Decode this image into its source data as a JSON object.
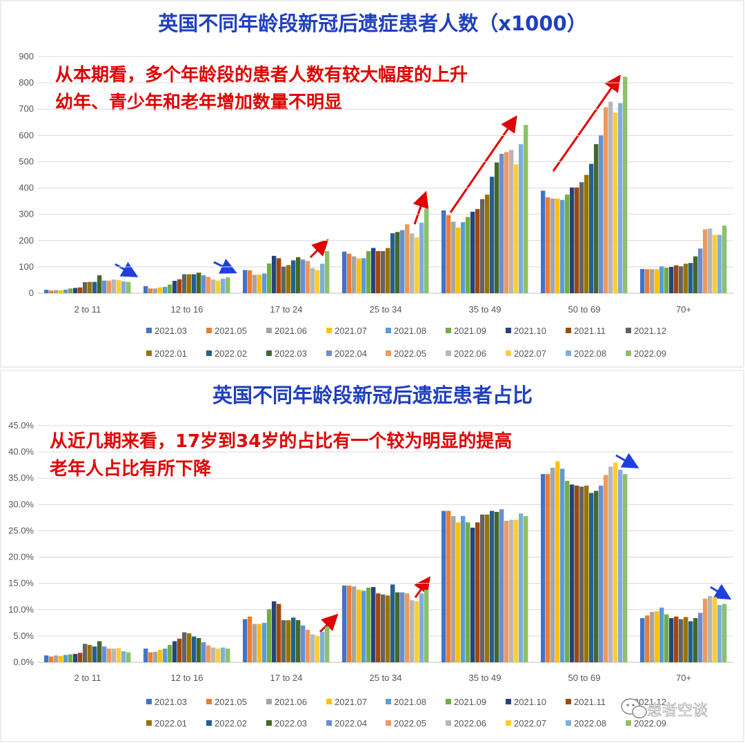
{
  "chart_data": [
    {
      "type": "bar",
      "title": "英国不同年龄段新冠后遗症患者人数（x1000）",
      "annotations": [
        "从本期看，多个年龄段的患者人数有较大幅度的上升",
        "幼年、青少年和老年增加数量不明显"
      ],
      "categories": [
        "2 to 11",
        "12 to 16",
        "17 to 24",
        "25 to 34",
        "35 to 49",
        "50 to 69",
        "70+"
      ],
      "ylim": [
        0,
        900
      ],
      "yticks": [
        "0",
        "100",
        "200",
        "300",
        "400",
        "500",
        "600",
        "700",
        "800",
        "900"
      ],
      "grid": true,
      "legend_position": "bottom",
      "series": [
        {
          "name": "2021.03",
          "color": "#4472c4",
          "values": [
            13,
            27,
            88,
            158,
            315,
            390,
            92
          ]
        },
        {
          "name": "2021.05",
          "color": "#ed7d31",
          "values": [
            10,
            18,
            87,
            150,
            297,
            365,
            91
          ]
        },
        {
          "name": "2021.06",
          "color": "#a5a5a5",
          "values": [
            12,
            18,
            70,
            140,
            272,
            360,
            91
          ]
        },
        {
          "name": "2021.07",
          "color": "#ffc000",
          "values": [
            11,
            22,
            70,
            132,
            250,
            360,
            91
          ]
        },
        {
          "name": "2021.08",
          "color": "#5b9bd5",
          "values": [
            14,
            24,
            75,
            133,
            270,
            355,
            102
          ]
        },
        {
          "name": "2021.09",
          "color": "#70ad47",
          "values": [
            18,
            33,
            113,
            160,
            290,
            375,
            97
          ]
        },
        {
          "name": "2021.10",
          "color": "#264478",
          "values": [
            20,
            47,
            142,
            172,
            310,
            402,
            100
          ]
        },
        {
          "name": "2021.11",
          "color": "#9e480e",
          "values": [
            22,
            53,
            133,
            160,
            320,
            402,
            106
          ]
        },
        {
          "name": "2021.12",
          "color": "#636363",
          "values": [
            42,
            72,
            101,
            160,
            358,
            422,
            102
          ]
        },
        {
          "name": "2022.01",
          "color": "#997300",
          "values": [
            43,
            72,
            107,
            172,
            375,
            450,
            112
          ]
        },
        {
          "name": "2022.02",
          "color": "#255e91",
          "values": [
            43,
            72,
            125,
            228,
            443,
            492,
            115
          ]
        },
        {
          "name": "2022.03",
          "color": "#43682b",
          "values": [
            68,
            78,
            137,
            233,
            497,
            567,
            140
          ]
        },
        {
          "name": "2022.04",
          "color": "#698ed0",
          "values": [
            48,
            68,
            128,
            240,
            530,
            600,
            170
          ]
        },
        {
          "name": "2022.05",
          "color": "#f1975a",
          "values": [
            48,
            62,
            122,
            262,
            537,
            707,
            243
          ]
        },
        {
          "name": "2022.06",
          "color": "#b7b7b7",
          "values": [
            52,
            52,
            95,
            227,
            545,
            728,
            246
          ]
        },
        {
          "name": "2022.07",
          "color": "#ffcd33",
          "values": [
            50,
            48,
            88,
            212,
            490,
            687,
            222
          ]
        },
        {
          "name": "2022.08",
          "color": "#7cafdd",
          "values": [
            45,
            55,
            112,
            268,
            567,
            723,
            222
          ]
        },
        {
          "name": "2022.09",
          "color": "#8cc168",
          "values": [
            43,
            60,
            160,
            322,
            640,
            823,
            257
          ]
        }
      ]
    },
    {
      "type": "bar",
      "title": "英国不同年龄段新冠后遗症患者占比",
      "annotations": [
        "从近几期来看，17岁到34岁的占比有一个较为明显的提高",
        "老年人占比有所下降"
      ],
      "categories": [
        "2 to 11",
        "12 to 16",
        "17 to 24",
        "25 to 34",
        "35 to 49",
        "50 to 69",
        "70+"
      ],
      "ylim": [
        0,
        45
      ],
      "yticks": [
        "0.0%",
        "5.0%",
        "10.0%",
        "15.0%",
        "20.0%",
        "25.0%",
        "30.0%",
        "35.0%",
        "40.0%",
        "45.0%"
      ],
      "grid": true,
      "legend_position": "bottom",
      "series": [
        {
          "name": "2021.03",
          "color": "#4472c4",
          "values": [
            1.3,
            2.6,
            8.2,
            14.6,
            28.8,
            35.8,
            8.4
          ]
        },
        {
          "name": "2021.05",
          "color": "#ed7d31",
          "values": [
            1.1,
            1.9,
            8.7,
            14.6,
            28.8,
            35.8,
            8.9
          ]
        },
        {
          "name": "2021.06",
          "color": "#a5a5a5",
          "values": [
            1.3,
            2.0,
            7.3,
            14.4,
            27.8,
            37.0,
            9.6
          ]
        },
        {
          "name": "2021.07",
          "color": "#ffc000",
          "values": [
            1.2,
            2.4,
            7.3,
            13.8,
            26.6,
            38.2,
            9.7
          ]
        },
        {
          "name": "2021.08",
          "color": "#5b9bd5",
          "values": [
            1.4,
            2.6,
            7.5,
            13.6,
            27.8,
            36.8,
            10.4
          ]
        },
        {
          "name": "2021.09",
          "color": "#70ad47",
          "values": [
            1.5,
            3.3,
            10.1,
            14.2,
            26.6,
            34.5,
            9.1
          ]
        },
        {
          "name": "2021.10",
          "color": "#264478",
          "values": [
            1.6,
            4.0,
            11.6,
            14.3,
            25.6,
            33.8,
            8.4
          ]
        },
        {
          "name": "2021.11",
          "color": "#9e480e",
          "values": [
            1.8,
            4.5,
            11.1,
            13.1,
            26.6,
            33.6,
            8.7
          ]
        },
        {
          "name": "2021.12",
          "color": "#636363",
          "values": [
            3.5,
            5.7,
            8.0,
            12.9,
            28.1,
            33.4,
            8.2
          ]
        },
        {
          "name": "2022.01",
          "color": "#997300",
          "values": [
            3.3,
            5.5,
            8.0,
            12.7,
            28.1,
            33.6,
            8.6
          ]
        },
        {
          "name": "2022.02",
          "color": "#255e91",
          "values": [
            3.0,
            4.9,
            8.5,
            14.8,
            28.8,
            32.2,
            7.8
          ]
        },
        {
          "name": "2022.03",
          "color": "#43682b",
          "values": [
            4.0,
            4.6,
            8.0,
            13.3,
            28.6,
            32.6,
            8.4
          ]
        },
        {
          "name": "2022.04",
          "color": "#698ed0",
          "values": [
            3.0,
            3.8,
            7.0,
            13.3,
            29.1,
            33.6,
            9.4
          ]
        },
        {
          "name": "2022.05",
          "color": "#f1975a",
          "values": [
            2.6,
            3.2,
            6.2,
            13.1,
            26.9,
            35.6,
            12.1
          ]
        },
        {
          "name": "2022.06",
          "color": "#b7b7b7",
          "values": [
            2.6,
            2.8,
            5.3,
            11.8,
            27.1,
            37.2,
            12.6
          ]
        },
        {
          "name": "2022.07",
          "color": "#ffcd33",
          "values": [
            2.7,
            2.6,
            5.0,
            11.6,
            27.1,
            38.0,
            12.4
          ]
        },
        {
          "name": "2022.08",
          "color": "#7cafdd",
          "values": [
            2.1,
            2.8,
            5.8,
            13.1,
            28.3,
            36.6,
            10.9
          ]
        },
        {
          "name": "2022.09",
          "color": "#8cc168",
          "values": [
            1.9,
            2.6,
            6.8,
            13.8,
            27.8,
            35.8,
            11.1
          ]
        }
      ]
    }
  ],
  "watermark": {
    "icon": "wechat-icon",
    "text": "患者空谈"
  }
}
